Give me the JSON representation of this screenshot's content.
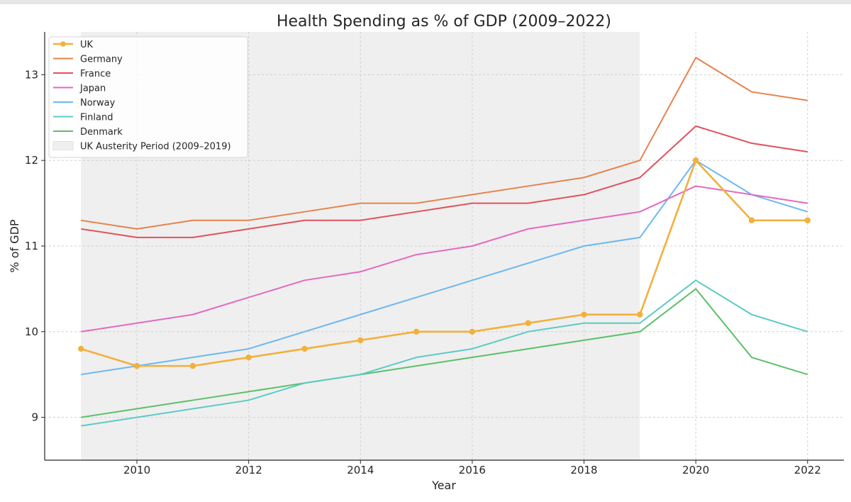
{
  "chart_data": {
    "type": "line",
    "title": "Health Spending as % of GDP (2009–2022)",
    "xlabel": "Year",
    "ylabel": "% of GDP",
    "xlim": [
      2008.35,
      2022.65
    ],
    "ylim": [
      8.5,
      13.5
    ],
    "x_ticks": [
      2010,
      2012,
      2014,
      2016,
      2018,
      2020,
      2022
    ],
    "y_ticks": [
      9,
      10,
      11,
      12,
      13
    ],
    "grid": true,
    "legend_position": "top-left",
    "x": [
      2009,
      2010,
      2011,
      2012,
      2013,
      2014,
      2015,
      2016,
      2017,
      2018,
      2019,
      2020,
      2021,
      2022
    ],
    "series": [
      {
        "name": "UK",
        "color": "#f2b03c",
        "markers": true,
        "values": [
          9.8,
          9.6,
          9.6,
          9.7,
          9.8,
          9.9,
          10.0,
          10.0,
          10.1,
          10.2,
          10.2,
          12.0,
          11.3,
          11.3
        ]
      },
      {
        "name": "Germany",
        "color": "#e6834d",
        "markers": false,
        "values": [
          11.3,
          11.2,
          11.3,
          11.3,
          11.4,
          11.5,
          11.5,
          11.6,
          11.7,
          11.8,
          12.0,
          13.2,
          12.8,
          12.7
        ]
      },
      {
        "name": "France",
        "color": "#e0525e",
        "markers": false,
        "values": [
          11.2,
          11.1,
          11.1,
          11.2,
          11.3,
          11.3,
          11.4,
          11.5,
          11.5,
          11.6,
          11.8,
          12.4,
          12.2,
          12.1
        ]
      },
      {
        "name": "Japan",
        "color": "#e469c0",
        "markers": false,
        "values": [
          10.0,
          10.1,
          10.2,
          10.4,
          10.6,
          10.7,
          10.9,
          11.0,
          11.2,
          11.3,
          11.4,
          11.7,
          11.6,
          11.5
        ]
      },
      {
        "name": "Norway",
        "color": "#6cb8f0",
        "markers": false,
        "values": [
          9.5,
          9.6,
          9.7,
          9.8,
          10.0,
          10.2,
          10.4,
          10.6,
          10.8,
          11.0,
          11.1,
          12.0,
          11.6,
          11.4
        ]
      },
      {
        "name": "Finland",
        "color": "#5ccbc4",
        "markers": false,
        "values": [
          8.9,
          9.0,
          9.1,
          9.2,
          9.4,
          9.5,
          9.7,
          9.8,
          10.0,
          10.1,
          10.1,
          10.6,
          10.2,
          10.0
        ]
      },
      {
        "name": "Denmark",
        "color": "#5cc068",
        "markers": false,
        "values": [
          9.0,
          9.1,
          9.2,
          9.3,
          9.4,
          9.5,
          9.6,
          9.7,
          9.8,
          9.9,
          10.0,
          10.5,
          9.7,
          9.5
        ]
      }
    ],
    "shaded_region": {
      "label": "UK Austerity Period (2009–2019)",
      "x_start": 2009,
      "x_end": 2019,
      "color": "#efefef"
    }
  }
}
